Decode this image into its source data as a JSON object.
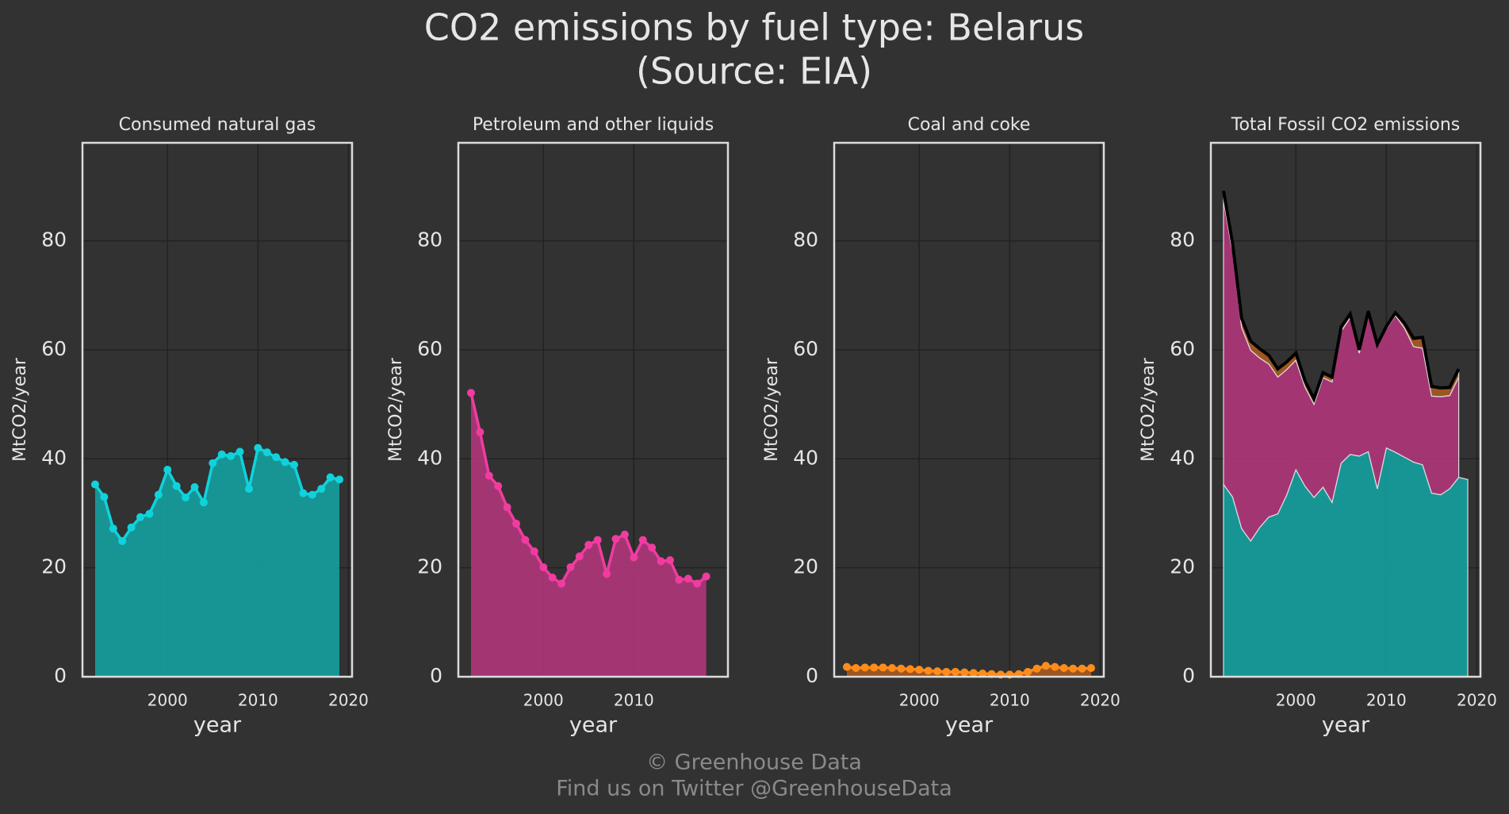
{
  "title_lines": [
    "CO2 emissions by fuel type: Belarus",
    "(Source: EIA)"
  ],
  "footer_lines": [
    "© Greenhouse Data",
    "Find us on Twitter @GreenhouseData"
  ],
  "chart_data": [
    {
      "type": "area_line",
      "title": "Consumed natural gas",
      "xlabel": "year",
      "ylabel": "MtCO2/year",
      "color": "#10d2dc",
      "area_color": "#14a0a0",
      "x": [
        1992,
        1993,
        1994,
        1995,
        1996,
        1997,
        1998,
        1999,
        2000,
        2001,
        2002,
        2003,
        2004,
        2005,
        2006,
        2007,
        2008,
        2009,
        2010,
        2011,
        2012,
        2013,
        2014,
        2015,
        2016,
        2017,
        2018,
        2019
      ],
      "values": [
        35.3,
        33,
        27.2,
        24.9,
        27.4,
        29.3,
        29.9,
        33.4,
        38,
        35,
        32.9,
        34.8,
        32,
        39.2,
        40.8,
        40.5,
        41.3,
        34.5,
        42,
        41.2,
        40.3,
        39.4,
        38.9,
        33.7,
        33.4,
        34.5,
        36.6,
        36.2
      ],
      "xlim": [
        1990.6,
        2020.4
      ],
      "ylim": [
        0,
        98
      ],
      "xticks": [
        2000,
        2010,
        2020
      ],
      "yticks": [
        0,
        20,
        40,
        60,
        80
      ],
      "grid": true
    },
    {
      "type": "area_line",
      "title": "Petroleum and other liquids",
      "xlabel": "year",
      "ylabel": "MtCO2/year",
      "color": "#f03ca0",
      "area_color": "#b0357a",
      "x": [
        1992,
        1993,
        1994,
        1995,
        1996,
        1997,
        1998,
        1999,
        2000,
        2001,
        2002,
        2003,
        2004,
        2005,
        2006,
        2007,
        2008,
        2009,
        2010,
        2011,
        2012,
        2013,
        2014,
        2015,
        2016,
        2017,
        2018
      ],
      "values": [
        52.1,
        44.9,
        36.9,
        35,
        31.1,
        28.1,
        25.1,
        23,
        20.1,
        18.2,
        17.1,
        20.1,
        22.1,
        24.2,
        25.1,
        18.9,
        25.3,
        26.1,
        21.9,
        25.1,
        23.7,
        21.2,
        21.4,
        17.8,
        18,
        17.1,
        18.4
      ],
      "xlim": [
        1990.6,
        2020.4
      ],
      "ylim": [
        0,
        98
      ],
      "xticks": [
        2000,
        2010
      ],
      "yticks": [
        0,
        20,
        40,
        60,
        80
      ],
      "grid": true
    },
    {
      "type": "area_line",
      "title": "Coal and coke",
      "xlabel": "year",
      "ylabel": "MtCO2/year",
      "color": "#ff8c1a",
      "area_color": "#a85a20",
      "x": [
        1992,
        1993,
        1994,
        1995,
        1996,
        1997,
        1998,
        1999,
        2000,
        2001,
        2002,
        2003,
        2004,
        2005,
        2006,
        2007,
        2008,
        2009,
        2010,
        2011,
        2012,
        2013,
        2014,
        2015,
        2016,
        2017,
        2018,
        2019
      ],
      "values": [
        1.8,
        1.6,
        1.7,
        1.7,
        1.7,
        1.6,
        1.5,
        1.4,
        1.3,
        1.1,
        1.0,
        0.9,
        0.9,
        0.8,
        0.7,
        0.6,
        0.5,
        0.4,
        0.4,
        0.5,
        0.9,
        1.5,
        2.0,
        1.8,
        1.6,
        1.5,
        1.5,
        1.6
      ],
      "xlim": [
        1990.6,
        2020.4
      ],
      "ylim": [
        0,
        98
      ],
      "xticks": [
        2000,
        2010,
        2020
      ],
      "yticks": [
        0,
        20,
        40,
        60,
        80
      ],
      "grid": true
    },
    {
      "type": "stacked_area",
      "title": "Total Fossil CO2 emissions",
      "xlabel": "year",
      "ylabel": "MtCO2/year",
      "line_color": "#000000",
      "xlim": [
        1990.6,
        2020.4
      ],
      "ylim": [
        0,
        98
      ],
      "xticks": [
        2000,
        2010,
        2020
      ],
      "yticks": [
        0,
        20,
        40,
        60,
        80
      ],
      "grid": true
    }
  ]
}
